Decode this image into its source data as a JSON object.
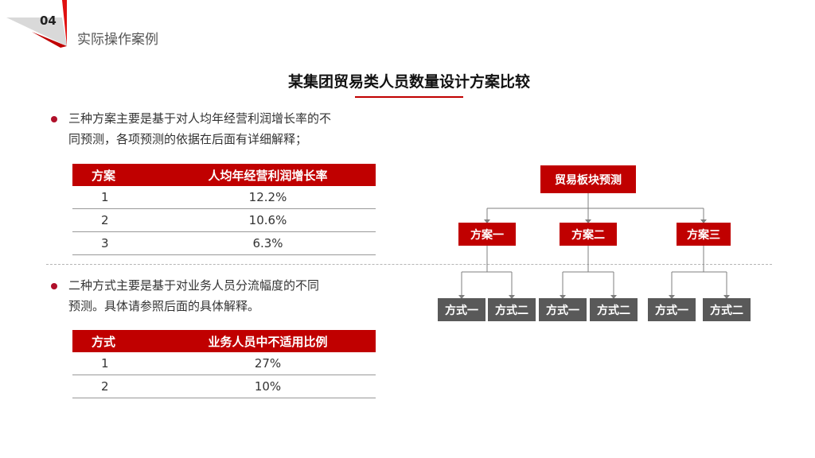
{
  "header": {
    "section_number": "04",
    "section_title": "实际操作案例"
  },
  "title": "某集团贸易类人员数量设计方案比较",
  "bullets": [
    {
      "text_line1": "三种方案主要是基于对人均年经营利润增长率的不",
      "text_line2": "同预测，各项预测的依据在后面有详细解释；"
    },
    {
      "text_line1": "二种方式主要是基于对业务人员分流幅度的不同",
      "text_line2": "预测。具体请参照后面的具体解释。"
    }
  ],
  "table_plans": {
    "headers": [
      "方案",
      "人均年经营利润增长率"
    ],
    "rows": [
      [
        "1",
        "12.2%"
      ],
      [
        "2",
        "10.6%"
      ],
      [
        "3",
        "6.3%"
      ]
    ]
  },
  "table_methods": {
    "headers": [
      "方式",
      "业务人员中不适用比例"
    ],
    "rows": [
      [
        "1",
        "27%"
      ],
      [
        "2",
        "10%"
      ]
    ]
  },
  "org_chart": {
    "root": "贸易板块预测",
    "plans": [
      {
        "label": "方案一",
        "methods": [
          "方式一",
          "方式二"
        ]
      },
      {
        "label": "方案二",
        "methods": [
          "方式一",
          "方式二"
        ]
      },
      {
        "label": "方案三",
        "methods": [
          "方式一",
          "方式二"
        ]
      }
    ]
  },
  "colors": {
    "accent_red": "#c00000",
    "method_gray": "#595959",
    "bullet_red": "#b0102a"
  }
}
